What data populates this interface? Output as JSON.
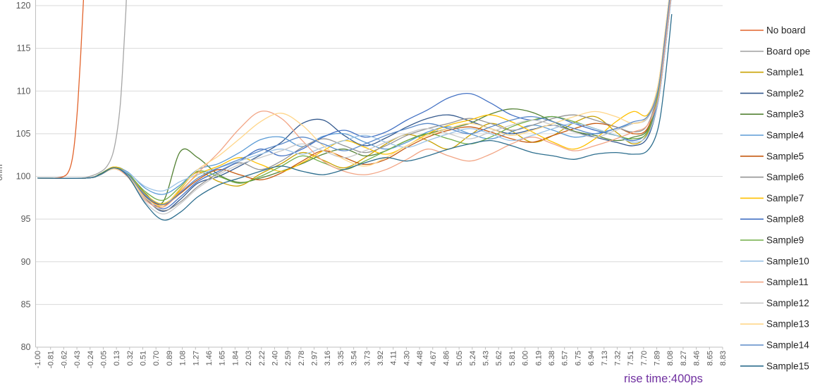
{
  "chart_data": {
    "type": "line",
    "title": "",
    "ylabel": "ohm",
    "xlabel": "",
    "grid": "horizontal",
    "legend_position": "right",
    "ylim": [
      80,
      120
    ],
    "y_ticks": [
      120,
      115,
      110,
      105,
      100,
      95,
      90,
      85,
      80
    ],
    "x_tick_labels": [
      "-1.00",
      "-0.81",
      "-0.62",
      "-0.43",
      "-0.24",
      "-0.05",
      "0.13",
      "0.32",
      "0.51",
      "0.70",
      "0.89",
      "1.08",
      "1.27",
      "1.46",
      "1.65",
      "1.84",
      "2.03",
      "2.22",
      "2.40",
      "2.59",
      "2.78",
      "2.97",
      "3.16",
      "3.35",
      "3.54",
      "3.73",
      "3.92",
      "4.11",
      "4.30",
      "4.48",
      "4.67",
      "4.86",
      "5.05",
      "5.24",
      "5.43",
      "5.62",
      "5.81",
      "6.00",
      "6.19",
      "6.38",
      "6.57",
      "6.75",
      "6.94",
      "7.13",
      "7.32",
      "7.51",
      "7.70",
      "7.89",
      "8.08",
      "8.27",
      "8.46",
      "8.65",
      "8.83"
    ],
    "x_range_of_labels": [
      -1.0,
      8.83
    ],
    "annotation": {
      "text": "rise time:400ps",
      "color": "#7030A0"
    },
    "sample_x": [
      -1.0,
      -0.3,
      -0.1,
      0.1,
      0.3,
      0.55,
      0.8,
      1.05,
      1.3,
      1.6,
      1.9,
      2.2,
      2.5,
      2.8,
      3.1,
      3.4,
      3.7,
      4.0,
      4.3,
      4.6,
      4.9,
      5.2,
      5.5,
      5.8,
      6.1,
      6.4,
      6.7,
      7.0,
      7.3,
      7.55,
      7.75,
      7.9,
      8.0,
      8.1
    ],
    "series": [
      {
        "name": "No board",
        "color": "#E2632B",
        "x": [
          -1.0,
          -0.75,
          -0.62,
          -0.55,
          -0.5,
          -0.46,
          -0.42,
          -0.38,
          -0.34,
          -0.3
        ],
        "y": [
          99.8,
          99.8,
          100.0,
          100.6,
          102.0,
          104.5,
          108.5,
          114.0,
          120.5,
          128.0
        ]
      },
      {
        "name": "Board ope",
        "color": "#A6A6A6",
        "x": [
          -1.0,
          -0.4,
          -0.25,
          -0.1,
          0.0,
          0.08,
          0.14,
          0.19,
          0.23,
          0.27,
          0.3
        ],
        "y": [
          99.8,
          99.8,
          100.0,
          100.5,
          101.2,
          102.6,
          105.0,
          108.5,
          113.5,
          119.5,
          126.0
        ]
      },
      {
        "name": "Sample1",
        "color": "#C9A100",
        "y": [
          99.8,
          99.8,
          100.2,
          101.0,
          100.2,
          97.8,
          96.4,
          98.5,
          100.5,
          99.4,
          98.9,
          100.3,
          101.5,
          102.8,
          101.9,
          101.0,
          102.2,
          103.8,
          104.9,
          104.2,
          103.2,
          104.8,
          106.2,
          105.3,
          104.0,
          104.8,
          106.3,
          107.0,
          105.2,
          103.8,
          105.0,
          109.0,
          115.0,
          122.0
        ]
      },
      {
        "name": "Sample2",
        "color": "#34598D",
        "y": [
          99.8,
          99.8,
          100.2,
          101.0,
          100.1,
          97.5,
          95.9,
          97.3,
          99.2,
          100.0,
          101.2,
          102.5,
          104.0,
          106.2,
          106.6,
          104.8,
          103.6,
          104.5,
          105.8,
          106.8,
          107.2,
          106.5,
          105.6,
          105.0,
          105.5,
          106.0,
          105.2,
          104.6,
          104.0,
          103.6,
          104.5,
          108.5,
          114.5,
          121.5
        ]
      },
      {
        "name": "Sample3",
        "color": "#548235",
        "y": [
          99.8,
          99.8,
          100.3,
          101.1,
          100.4,
          98.0,
          97.0,
          102.9,
          102.2,
          100.2,
          99.3,
          99.8,
          100.6,
          101.5,
          102.6,
          103.2,
          102.4,
          103.0,
          104.2,
          105.0,
          105.6,
          106.2,
          107.3,
          107.9,
          107.5,
          106.4,
          105.3,
          104.8,
          104.2,
          104.6,
          105.4,
          109.0,
          115.0,
          122.0
        ]
      },
      {
        "name": "Sample4",
        "color": "#5B9BD5",
        "y": [
          99.8,
          99.8,
          100.2,
          101.0,
          100.5,
          98.6,
          97.9,
          99.0,
          100.8,
          101.5,
          102.8,
          104.3,
          104.6,
          103.5,
          104.7,
          105.0,
          104.0,
          103.2,
          104.0,
          105.2,
          105.8,
          105.0,
          104.4,
          105.2,
          106.0,
          105.4,
          104.6,
          105.0,
          105.6,
          106.2,
          106.8,
          110.0,
          116.0,
          123.0
        ]
      },
      {
        "name": "Sample5",
        "color": "#C55A11",
        "y": [
          99.8,
          99.8,
          100.2,
          100.9,
          100.0,
          97.6,
          96.6,
          98.0,
          99.6,
          100.8,
          100.2,
          99.6,
          100.4,
          101.8,
          103.0,
          102.2,
          101.4,
          102.0,
          103.4,
          104.6,
          105.4,
          105.8,
          105.2,
          104.4,
          104.0,
          104.8,
          105.6,
          106.2,
          105.8,
          105.0,
          105.6,
          109.5,
          115.5,
          122.5
        ]
      },
      {
        "name": "Sample6",
        "color": "#949494",
        "y": [
          99.8,
          99.8,
          100.2,
          101.0,
          100.1,
          97.4,
          96.0,
          97.0,
          98.8,
          100.4,
          101.6,
          100.8,
          101.8,
          103.4,
          104.4,
          103.6,
          102.8,
          103.6,
          104.8,
          105.6,
          106.2,
          106.8,
          106.2,
          105.4,
          106.0,
          106.8,
          107.2,
          106.6,
          105.8,
          105.2,
          106.0,
          110.0,
          116.0,
          123.0
        ]
      },
      {
        "name": "Sample7",
        "color": "#FFC000",
        "y": [
          99.8,
          99.8,
          100.2,
          101.1,
          100.3,
          97.9,
          96.8,
          98.3,
          100.2,
          101.2,
          102.2,
          101.4,
          100.6,
          101.6,
          103.0,
          104.2,
          103.4,
          102.6,
          103.6,
          105.0,
          106.0,
          106.6,
          107.2,
          106.4,
          105.2,
          104.0,
          103.2,
          104.4,
          106.4,
          107.6,
          107.2,
          110.5,
          116.5,
          123.5
        ]
      },
      {
        "name": "Sample8",
        "color": "#4472C4",
        "y": [
          99.8,
          99.8,
          100.2,
          101.0,
          100.2,
          97.7,
          96.2,
          97.6,
          99.4,
          100.6,
          101.8,
          103.2,
          102.4,
          103.2,
          104.6,
          105.4,
          104.6,
          105.2,
          106.6,
          107.8,
          109.2,
          109.7,
          108.6,
          107.2,
          106.6,
          107.0,
          106.2,
          105.4,
          104.8,
          104.2,
          105.2,
          109.0,
          115.0,
          122.0
        ]
      },
      {
        "name": "Sample9",
        "color": "#70AD47",
        "y": [
          99.8,
          99.8,
          100.2,
          101.0,
          100.3,
          98.2,
          97.2,
          98.8,
          100.6,
          100.0,
          99.2,
          100.0,
          101.2,
          102.4,
          101.6,
          100.8,
          101.8,
          103.0,
          104.2,
          105.0,
          104.4,
          103.8,
          104.6,
          105.8,
          106.6,
          107.0,
          106.4,
          105.6,
          104.8,
          104.4,
          105.2,
          109.5,
          115.5,
          122.5
        ]
      },
      {
        "name": "Sample10",
        "color": "#9DC3E6",
        "y": [
          99.8,
          99.8,
          100.2,
          100.9,
          100.4,
          98.8,
          98.3,
          99.4,
          100.2,
          101.0,
          101.8,
          102.6,
          103.2,
          102.6,
          103.4,
          104.2,
          104.8,
          104.0,
          103.4,
          104.2,
          105.0,
          105.6,
          105.0,
          104.2,
          104.8,
          105.6,
          106.2,
          105.6,
          104.8,
          104.0,
          104.8,
          108.5,
          114.5,
          121.5
        ]
      },
      {
        "name": "Sample11",
        "color": "#F2A585",
        "y": [
          99.8,
          99.8,
          100.2,
          100.9,
          99.9,
          97.2,
          96.4,
          98.2,
          100.4,
          102.8,
          105.6,
          107.6,
          106.8,
          104.2,
          101.8,
          100.6,
          100.2,
          100.8,
          102.0,
          103.2,
          102.4,
          101.8,
          102.6,
          103.8,
          104.6,
          103.8,
          103.0,
          103.6,
          104.4,
          105.2,
          106.0,
          109.0,
          115.0,
          122.0
        ]
      },
      {
        "name": "Sample12",
        "color": "#C9C9C9",
        "y": [
          99.8,
          99.8,
          100.2,
          101.0,
          100.0,
          97.0,
          95.6,
          96.8,
          98.6,
          100.2,
          101.4,
          102.2,
          103.0,
          103.8,
          103.0,
          102.2,
          103.0,
          104.0,
          105.0,
          105.6,
          105.0,
          104.4,
          105.2,
          106.0,
          106.6,
          106.0,
          105.2,
          104.6,
          105.4,
          106.2,
          106.8,
          110.0,
          116.0,
          123.0
        ]
      },
      {
        "name": "Sample13",
        "color": "#FFD68A",
        "y": [
          99.8,
          99.8,
          100.2,
          100.9,
          100.1,
          97.5,
          96.6,
          98.6,
          100.8,
          102.4,
          104.4,
          106.4,
          107.4,
          106.0,
          103.6,
          102.0,
          101.2,
          102.2,
          103.6,
          104.8,
          105.6,
          106.2,
          105.6,
          104.8,
          105.4,
          106.2,
          107.0,
          107.6,
          107.0,
          106.2,
          107.0,
          110.5,
          116.5,
          123.5
        ]
      },
      {
        "name": "Sample14",
        "color": "#5B8AC9",
        "y": [
          99.8,
          99.8,
          100.2,
          101.0,
          100.2,
          97.8,
          96.7,
          98.1,
          99.8,
          101.0,
          102.0,
          103.0,
          103.8,
          104.6,
          103.8,
          103.0,
          103.8,
          104.8,
          105.6,
          106.2,
          105.6,
          105.0,
          105.8,
          106.6,
          107.0,
          106.4,
          105.6,
          105.0,
          105.6,
          106.4,
          107.0,
          110.0,
          116.0,
          123.0
        ]
      },
      {
        "name": "Sample15",
        "color": "#2D6E8E",
        "y": [
          99.8,
          99.8,
          100.2,
          101.0,
          100.0,
          96.8,
          94.9,
          95.8,
          97.6,
          99.0,
          99.8,
          100.6,
          101.2,
          100.6,
          100.2,
          100.8,
          101.6,
          102.2,
          101.8,
          102.4,
          103.2,
          103.8,
          104.2,
          103.6,
          102.8,
          102.4,
          102.0,
          102.6,
          102.8,
          102.6,
          103.0,
          105.5,
          111.0,
          119.0
        ]
      }
    ]
  },
  "style": {
    "gridline_color": "#D9D9D9",
    "axis_line_color": "#BFBFBF",
    "tick_label_color": "#595959",
    "legend_text_color": "#262626"
  }
}
